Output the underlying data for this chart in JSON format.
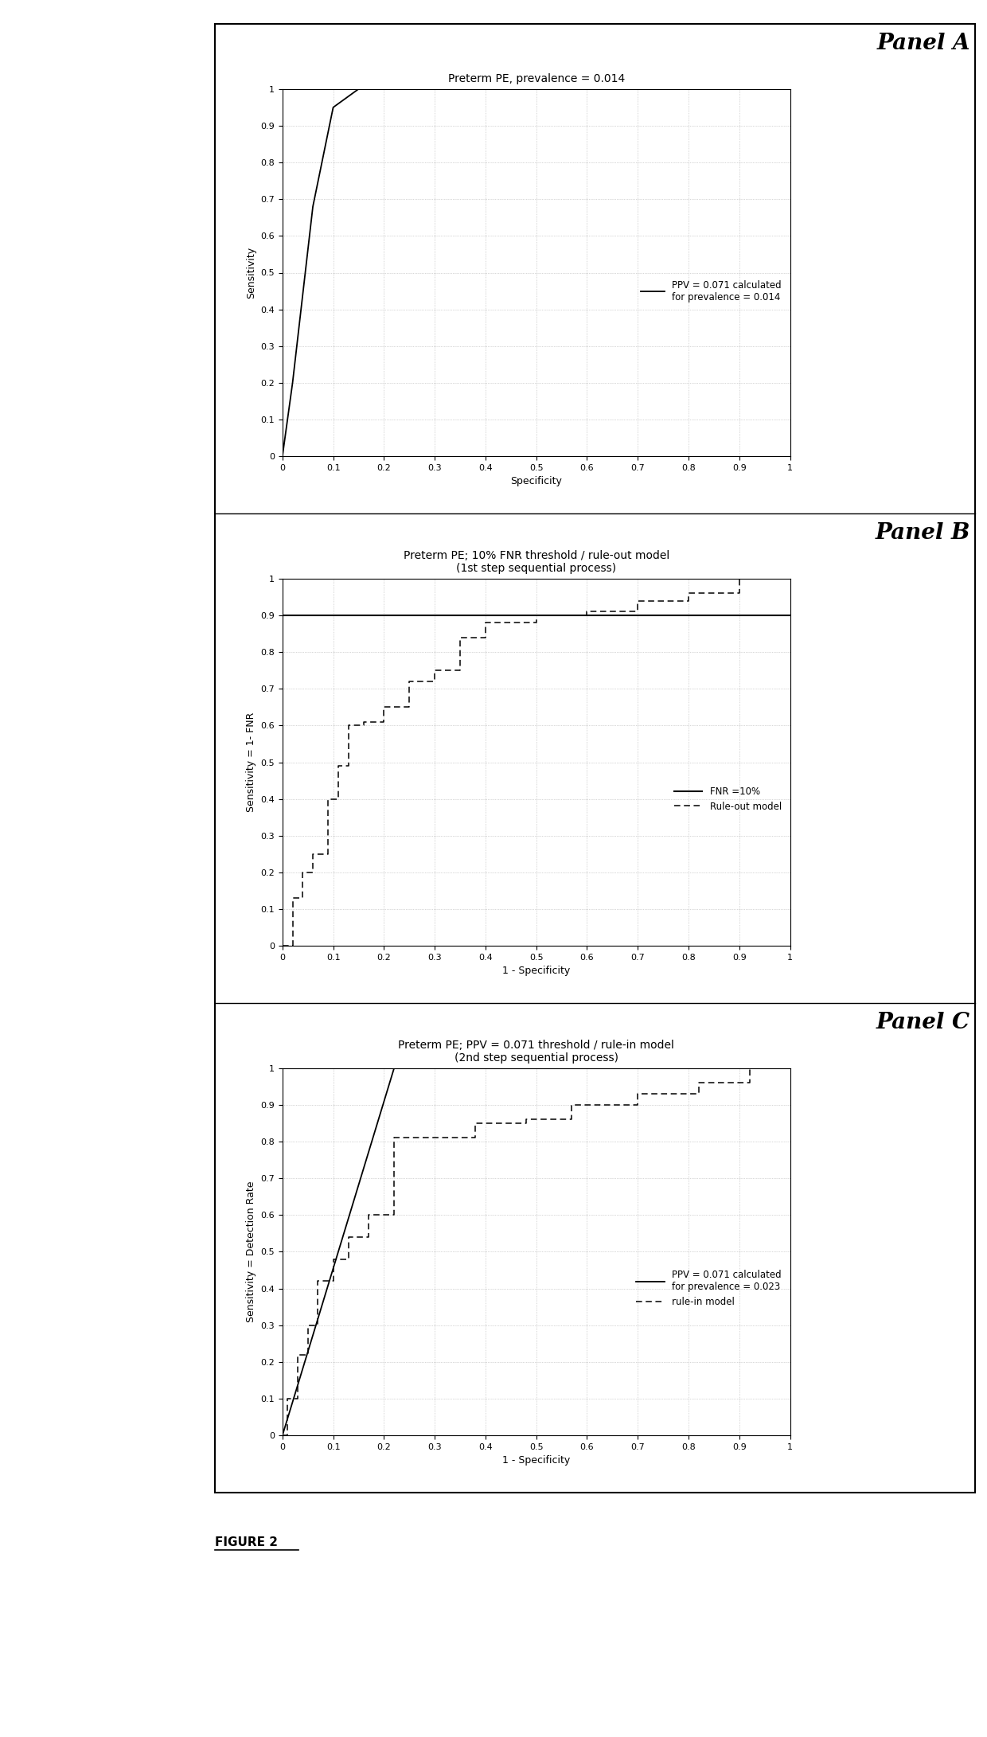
{
  "panel_a": {
    "title": "Preterm PE, prevalence = 0.014",
    "panel_label": "Panel A",
    "ylabel": "Sensitivity",
    "xlabel": "Specificity",
    "roc_x": [
      0,
      0.0,
      0.02,
      0.06,
      0.1,
      0.15,
      0.2,
      1.0
    ],
    "roc_y": [
      0,
      0.0,
      0.2,
      0.68,
      0.95,
      1.0,
      1.0,
      1.0
    ],
    "legend_text": "PPV = 0.071 calculated\nfor prevalence = 0.014",
    "xticks": [
      0,
      0.1,
      0.2,
      0.3,
      0.4,
      0.5,
      0.6,
      0.7,
      0.8,
      0.9,
      1
    ],
    "yticks": [
      0,
      0.1,
      0.2,
      0.3,
      0.4,
      0.5,
      0.6,
      0.7,
      0.8,
      0.9,
      1
    ]
  },
  "panel_b": {
    "title": "Preterm PE; 10% FNR threshold / rule-out model\n(1st step sequential process)",
    "panel_label": "Panel B",
    "ylabel": "Sensitivity = 1- FNR",
    "xlabel": "1 - Specificity",
    "fnr_line_y": 0.9,
    "roc_x": [
      0,
      0.02,
      0.02,
      0.04,
      0.04,
      0.06,
      0.06,
      0.09,
      0.09,
      0.11,
      0.11,
      0.13,
      0.13,
      0.16,
      0.16,
      0.2,
      0.2,
      0.25,
      0.25,
      0.3,
      0.3,
      0.35,
      0.35,
      0.4,
      0.4,
      0.5,
      0.5,
      0.6,
      0.6,
      0.7,
      0.7,
      0.8,
      0.8,
      0.9,
      0.9,
      1.0
    ],
    "roc_y": [
      0,
      0,
      0.13,
      0.13,
      0.2,
      0.2,
      0.25,
      0.25,
      0.4,
      0.4,
      0.49,
      0.49,
      0.6,
      0.6,
      0.61,
      0.61,
      0.65,
      0.65,
      0.72,
      0.72,
      0.75,
      0.75,
      0.84,
      0.84,
      0.88,
      0.88,
      0.9,
      0.9,
      0.91,
      0.91,
      0.94,
      0.94,
      0.96,
      0.96,
      1.0,
      1.0
    ],
    "legend_fnr": "FNR =10%",
    "legend_ruleout": "Rule-out model",
    "xticks": [
      0,
      0.1,
      0.2,
      0.3,
      0.4,
      0.5,
      0.6,
      0.7,
      0.8,
      0.9,
      1
    ],
    "yticks": [
      0,
      0.1,
      0.2,
      0.3,
      0.4,
      0.5,
      0.6,
      0.7,
      0.8,
      0.9,
      1
    ]
  },
  "panel_c": {
    "title": "Preterm PE; PPV = 0.071 threshold / rule-in model\n(2nd step sequential process)",
    "panel_label": "Panel C",
    "ylabel": "Sensitivity = Detection Rate",
    "xlabel": "1 - Specificity",
    "ppv_line_x": [
      0,
      0.22
    ],
    "ppv_line_y": [
      0,
      1.0
    ],
    "roc_x": [
      0,
      0.01,
      0.01,
      0.03,
      0.03,
      0.05,
      0.05,
      0.07,
      0.07,
      0.1,
      0.1,
      0.13,
      0.13,
      0.17,
      0.17,
      0.22,
      0.22,
      0.38,
      0.38,
      0.48,
      0.48,
      0.57,
      0.57,
      0.7,
      0.7,
      0.82,
      0.82,
      0.92,
      0.92,
      1.0
    ],
    "roc_y": [
      0,
      0,
      0.1,
      0.1,
      0.22,
      0.22,
      0.3,
      0.3,
      0.42,
      0.42,
      0.48,
      0.48,
      0.54,
      0.54,
      0.6,
      0.6,
      0.81,
      0.81,
      0.85,
      0.85,
      0.86,
      0.86,
      0.9,
      0.9,
      0.93,
      0.93,
      0.96,
      0.96,
      1.0,
      1.0
    ],
    "legend_ppv": "PPV = 0.071 calculated\nfor prevalence = 0.023",
    "legend_rulein": "rule-in model",
    "xticks": [
      0,
      0.1,
      0.2,
      0.3,
      0.4,
      0.5,
      0.6,
      0.7,
      0.8,
      0.9,
      1
    ],
    "yticks": [
      0,
      0.1,
      0.2,
      0.3,
      0.4,
      0.5,
      0.6,
      0.7,
      0.8,
      0.9,
      1
    ]
  },
  "figure_label": "FIGURE 2",
  "bg_color": "#ffffff",
  "line_color": "#000000",
  "grid_color": "#b0b0b0",
  "panel_font_size": 20,
  "title_font_size": 10,
  "tick_font_size": 8,
  "label_font_size": 9,
  "legend_font_size": 8.5
}
